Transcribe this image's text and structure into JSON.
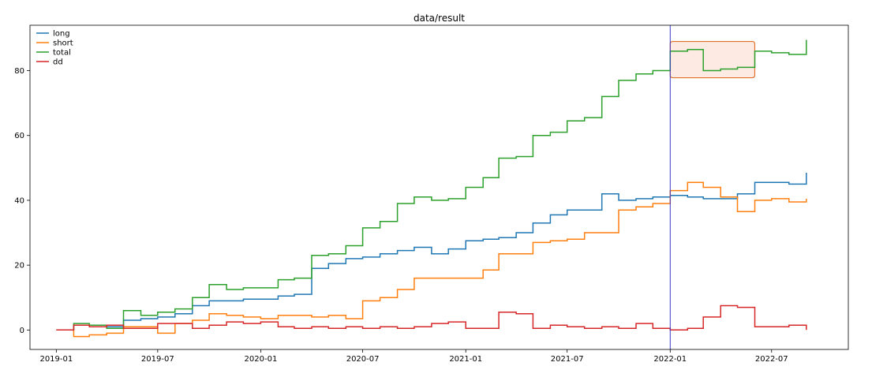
{
  "chart_data": {
    "type": "line",
    "step": true,
    "title": "data/result",
    "xlabel": "",
    "ylabel": "",
    "x_type": "date",
    "xlim": [
      "2018-11-15",
      "2022-11-15"
    ],
    "ylim": [
      -6,
      94
    ],
    "x_ticks": [
      "2019-01",
      "2019-07",
      "2020-01",
      "2020-07",
      "2021-01",
      "2021-07",
      "2022-01",
      "2022-07"
    ],
    "y_ticks": [
      0,
      20,
      40,
      60,
      80
    ],
    "grid": false,
    "legend": {
      "position": "top-left"
    },
    "vline": {
      "x": "2022-01-01",
      "color": "#3b3bc8"
    },
    "highlight_box": {
      "x0": "2022-01-01",
      "x1": "2022-06-01",
      "y0": 77.8,
      "y1": 89,
      "stroke": "#e0702a",
      "fill": "#fdebe3"
    },
    "series": [
      {
        "name": "long",
        "color": "#1f77b4",
        "x": [
          "2019-01-01",
          "2019-02-01",
          "2019-03-01",
          "2019-04-01",
          "2019-05-01",
          "2019-06-01",
          "2019-07-01",
          "2019-08-01",
          "2019-09-01",
          "2019-10-01",
          "2019-11-01",
          "2019-12-01",
          "2020-01-01",
          "2020-02-01",
          "2020-03-01",
          "2020-04-01",
          "2020-05-01",
          "2020-06-01",
          "2020-07-01",
          "2020-08-01",
          "2020-09-01",
          "2020-10-01",
          "2020-11-01",
          "2020-12-01",
          "2021-01-01",
          "2021-02-01",
          "2021-03-01",
          "2021-04-01",
          "2021-05-01",
          "2021-06-01",
          "2021-07-01",
          "2021-08-01",
          "2021-09-01",
          "2021-10-01",
          "2021-11-01",
          "2021-12-01",
          "2022-01-01",
          "2022-02-01",
          "2022-03-01",
          "2022-04-01",
          "2022-05-01",
          "2022-06-01",
          "2022-07-01",
          "2022-08-01",
          "2022-09-01"
        ],
        "y": [
          0,
          1.5,
          1.5,
          1,
          3,
          3.5,
          4,
          5,
          7.5,
          9,
          9,
          9.5,
          9.5,
          10.5,
          11,
          19,
          20.5,
          22,
          22.5,
          23.5,
          24.5,
          25.5,
          23.5,
          25,
          27.5,
          28,
          28.5,
          30,
          33,
          35.5,
          37,
          37,
          42,
          40,
          40.5,
          41,
          41.5,
          41,
          40.5,
          40.5,
          42,
          45.5,
          45.5,
          45,
          48.5
        ]
      },
      {
        "name": "short",
        "color": "#ff7f0e",
        "x": [
          "2019-01-01",
          "2019-02-01",
          "2019-03-01",
          "2019-04-01",
          "2019-05-01",
          "2019-06-01",
          "2019-07-01",
          "2019-08-01",
          "2019-09-01",
          "2019-10-01",
          "2019-11-01",
          "2019-12-01",
          "2020-01-01",
          "2020-02-01",
          "2020-03-01",
          "2020-04-01",
          "2020-05-01",
          "2020-06-01",
          "2020-07-01",
          "2020-08-01",
          "2020-09-01",
          "2020-10-01",
          "2020-11-01",
          "2020-12-01",
          "2021-01-01",
          "2021-02-01",
          "2021-03-01",
          "2021-04-01",
          "2021-05-01",
          "2021-06-01",
          "2021-07-01",
          "2021-08-01",
          "2021-09-01",
          "2021-10-01",
          "2021-11-01",
          "2021-12-01",
          "2022-01-01",
          "2022-02-01",
          "2022-03-01",
          "2022-04-01",
          "2022-05-01",
          "2022-06-01",
          "2022-07-01",
          "2022-08-01",
          "2022-09-01"
        ],
        "y": [
          0,
          -2,
          -1.5,
          -1,
          1,
          1,
          -1,
          2,
          3,
          5,
          4.5,
          4,
          3.5,
          4.5,
          4.5,
          4,
          4.5,
          3.5,
          9,
          10,
          12.5,
          16,
          16,
          16,
          16,
          18.5,
          23.5,
          23.5,
          27,
          27.5,
          28,
          30,
          30,
          37,
          38,
          39,
          43,
          45.5,
          44,
          41,
          36.5,
          40,
          40.5,
          39.5,
          40.5
        ]
      },
      {
        "name": "total",
        "color": "#2ca02c",
        "x": [
          "2019-01-01",
          "2019-02-01",
          "2019-03-01",
          "2019-04-01",
          "2019-05-01",
          "2019-06-01",
          "2019-07-01",
          "2019-08-01",
          "2019-09-01",
          "2019-10-01",
          "2019-11-01",
          "2019-12-01",
          "2020-01-01",
          "2020-02-01",
          "2020-03-01",
          "2020-04-01",
          "2020-05-01",
          "2020-06-01",
          "2020-07-01",
          "2020-08-01",
          "2020-09-01",
          "2020-10-01",
          "2020-11-01",
          "2020-12-01",
          "2021-01-01",
          "2021-02-01",
          "2021-03-01",
          "2021-04-01",
          "2021-05-01",
          "2021-06-01",
          "2021-07-01",
          "2021-08-01",
          "2021-09-01",
          "2021-10-01",
          "2021-11-01",
          "2021-12-01",
          "2022-01-01",
          "2022-02-01",
          "2022-03-01",
          "2022-04-01",
          "2022-05-01",
          "2022-06-01",
          "2022-07-01",
          "2022-08-01",
          "2022-09-01"
        ],
        "y": [
          0,
          2,
          1.5,
          0.5,
          6,
          4.5,
          5.5,
          6.5,
          10,
          14,
          12.5,
          13,
          13,
          15.5,
          16,
          23,
          23.5,
          26,
          31.5,
          33.5,
          39,
          41,
          40,
          40.5,
          44,
          47,
          53,
          53.5,
          60,
          61,
          64.5,
          65.5,
          72,
          77,
          79,
          80,
          86,
          86.5,
          80,
          80.5,
          81,
          86,
          85.5,
          85,
          89.5
        ]
      },
      {
        "name": "dd",
        "color": "#d62728",
        "x": [
          "2019-01-01",
          "2019-02-01",
          "2019-03-01",
          "2019-04-01",
          "2019-05-01",
          "2019-06-01",
          "2019-07-01",
          "2019-08-01",
          "2019-09-01",
          "2019-10-01",
          "2019-11-01",
          "2019-12-01",
          "2020-01-01",
          "2020-02-01",
          "2020-03-01",
          "2020-04-01",
          "2020-05-01",
          "2020-06-01",
          "2020-07-01",
          "2020-08-01",
          "2020-09-01",
          "2020-10-01",
          "2020-11-01",
          "2020-12-01",
          "2021-01-01",
          "2021-02-01",
          "2021-03-01",
          "2021-04-01",
          "2021-05-01",
          "2021-06-01",
          "2021-07-01",
          "2021-08-01",
          "2021-09-01",
          "2021-10-01",
          "2021-11-01",
          "2021-12-01",
          "2022-01-01",
          "2022-02-01",
          "2022-03-01",
          "2022-04-01",
          "2022-05-01",
          "2022-06-01",
          "2022-07-01",
          "2022-08-01",
          "2022-09-01"
        ],
        "y": [
          0,
          1.5,
          1,
          1.5,
          0.5,
          0.5,
          2,
          2,
          0.5,
          1.5,
          2.5,
          2,
          2.5,
          1,
          0.5,
          1,
          0.5,
          1,
          0.5,
          1,
          0.5,
          1,
          2,
          2.5,
          0.5,
          0.5,
          5.5,
          5,
          0.5,
          1.5,
          1,
          0.5,
          1,
          0.5,
          2,
          0.5,
          0,
          0.5,
          4,
          7.5,
          7,
          1,
          1,
          1.5,
          0
        ]
      }
    ]
  }
}
